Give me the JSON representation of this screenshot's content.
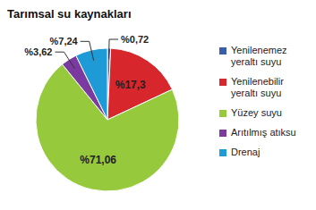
{
  "chart_data": {
    "type": "pie",
    "title": "Tarımsal su kaynakları",
    "categories": [
      "Yenilenemez yeraltı suyu",
      "Yenilenebilir yeraltı suyu",
      "Yüzey suyu",
      "Arıtılmış atıksu",
      "Drenaj"
    ],
    "values": [
      0.72,
      17.3,
      71.06,
      3.62,
      7.24
    ],
    "value_labels": [
      "%0,72",
      "%17,3",
      "%71,06",
      "%3,62",
      "%7,24"
    ],
    "colors": [
      "#3b5ea8",
      "#d7262c",
      "#97c93c",
      "#7a3aa0",
      "#1e9ad6"
    ],
    "data_labels": true,
    "legend": "right"
  }
}
